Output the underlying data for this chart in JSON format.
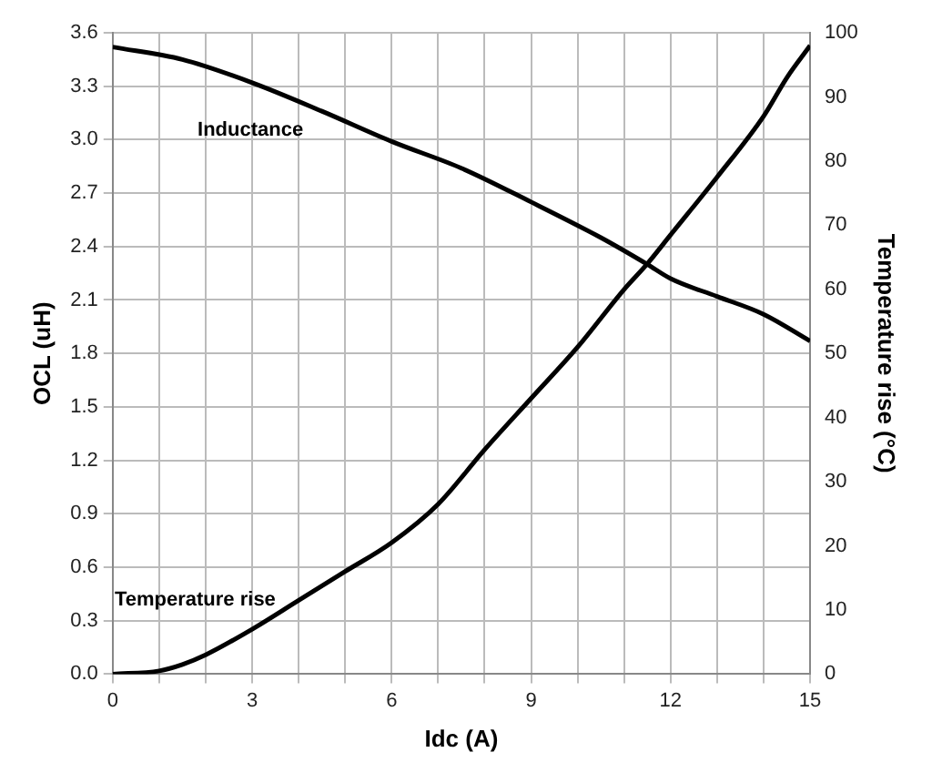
{
  "chart_data": {
    "type": "line",
    "xlabel": "Idc (A)",
    "ylabel": "OCL (uH)",
    "y2label": "Temperature rise (°C)",
    "xlim": [
      0,
      15
    ],
    "xticks": [
      0,
      {
        "value": 1,
        "label": null
      },
      {
        "value": 2,
        "label": null
      },
      3,
      {
        "value": 4,
        "label": null
      },
      {
        "value": 5,
        "label": null
      },
      6,
      {
        "value": 7,
        "label": null
      },
      {
        "value": 8,
        "label": null
      },
      9,
      {
        "value": 10,
        "label": null
      },
      {
        "value": 11,
        "label": null
      },
      12,
      {
        "value": 13,
        "label": null
      },
      {
        "value": 14,
        "label": null
      },
      15
    ],
    "ylim": [
      0,
      3.6
    ],
    "yticks": [
      {
        "value": 0,
        "label": "0.0"
      },
      0.3,
      0.6,
      0.9,
      1.2,
      1.5,
      1.8,
      2.1,
      2.4,
      2.7,
      {
        "value": 3,
        "label": "3.0"
      },
      3.3,
      3.6
    ],
    "y2lim": [
      0,
      100
    ],
    "y2ticks": [
      0,
      10,
      20,
      30,
      40,
      50,
      60,
      70,
      80,
      90,
      100
    ],
    "grid": true,
    "marker": "none",
    "line_style": "solid",
    "series": [
      {
        "name": "Inductance",
        "color": "#000000",
        "x": [
          0,
          1.5,
          3,
          4.5,
          6,
          7.5,
          9,
          10.5,
          11.5,
          12,
          13,
          14,
          15
        ],
        "values": [
          3.52,
          3.45,
          3.32,
          3.16,
          2.99,
          2.84,
          2.65,
          2.45,
          2.3,
          2.22,
          2.12,
          2.02,
          1.87
        ]
      },
      {
        "name": "Temperature rise",
        "color": "#000000",
        "axis": "y2",
        "x": [
          0,
          1,
          1.5,
          2,
          3,
          4,
          5,
          6,
          7,
          8,
          9,
          10,
          11,
          11.5,
          12,
          13,
          14,
          14.5,
          15
        ],
        "values": [
          0,
          0.5,
          1.5,
          3,
          7,
          11.5,
          16,
          20.5,
          26.5,
          35,
          43,
          51,
          60,
          64,
          68.5,
          77.5,
          87,
          93,
          98
        ]
      }
    ]
  }
}
